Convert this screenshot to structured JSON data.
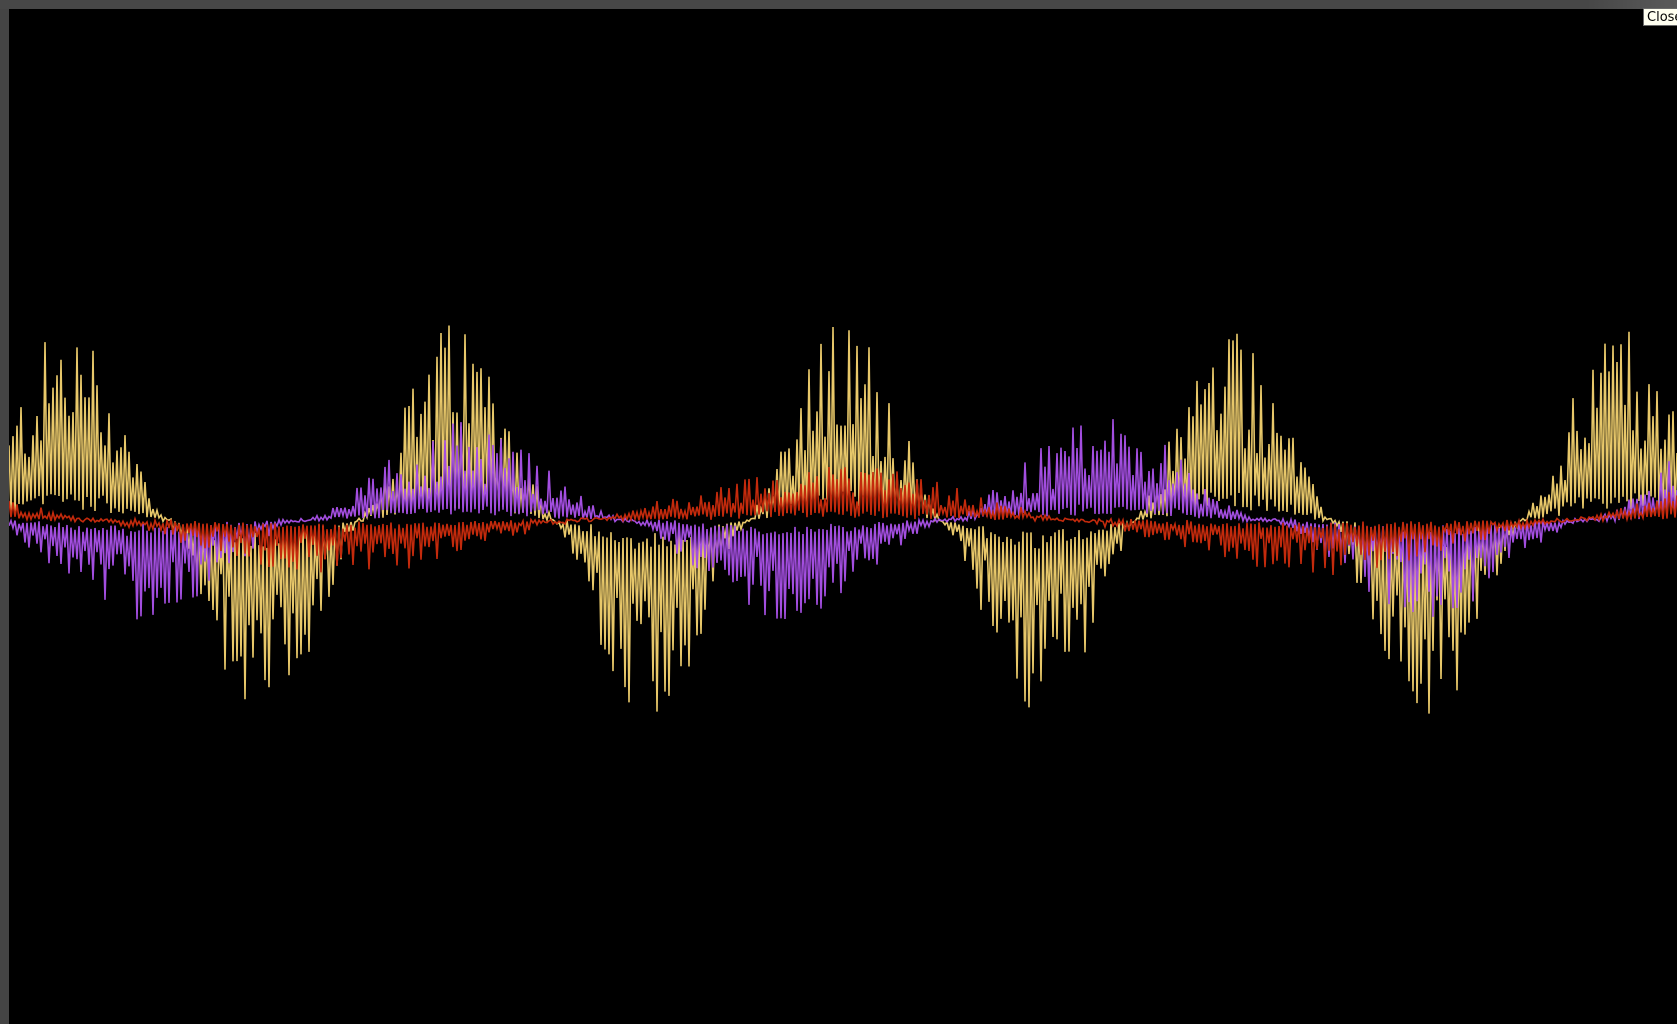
{
  "window": {
    "close_label": "Close"
  },
  "visualizer": {
    "background": "#000000",
    "series": [
      {
        "color": "#e8c86a"
      },
      {
        "color": "#a34ee0"
      },
      {
        "color": "#c42a0c"
      }
    ]
  }
}
